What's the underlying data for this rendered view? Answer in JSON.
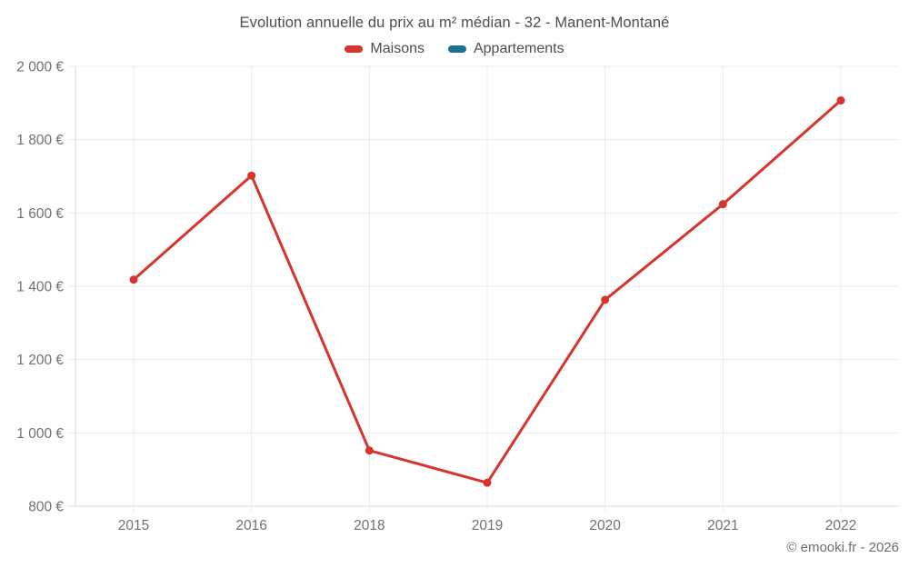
{
  "chart_data": {
    "type": "line",
    "title": "Evolution annuelle du prix au m² médian - 32 - Manent-Montané",
    "categories": [
      "2015",
      "2016",
      "2018",
      "2019",
      "2020",
      "2021",
      "2022"
    ],
    "series": [
      {
        "name": "Maisons",
        "color": "#d7342e",
        "values": [
          1418,
          1702,
          952,
          864,
          1363,
          1624,
          1907
        ]
      },
      {
        "name": "Appartements",
        "color": "#1c7193",
        "values": []
      }
    ],
    "ylim": [
      800,
      2000
    ],
    "ytick_step": 200,
    "yticks": [
      {
        "value": 2000,
        "label": "2 000 €"
      },
      {
        "value": 1800,
        "label": "1 800 €"
      },
      {
        "value": 1600,
        "label": "1 600 €"
      },
      {
        "value": 1400,
        "label": "1 400 €"
      },
      {
        "value": 1200,
        "label": "1 200 €"
      },
      {
        "value": 1000,
        "label": "1 000 €"
      },
      {
        "value": 800,
        "label": "800 €"
      }
    ],
    "grid": true,
    "legend_position": "top",
    "copyright": "© emooki.fr - 2026"
  },
  "colors": {
    "gridline": "#ebebeb",
    "axis_border": "#dadada",
    "tick_text": "#717171",
    "title_text": "#4d4d4d"
  }
}
